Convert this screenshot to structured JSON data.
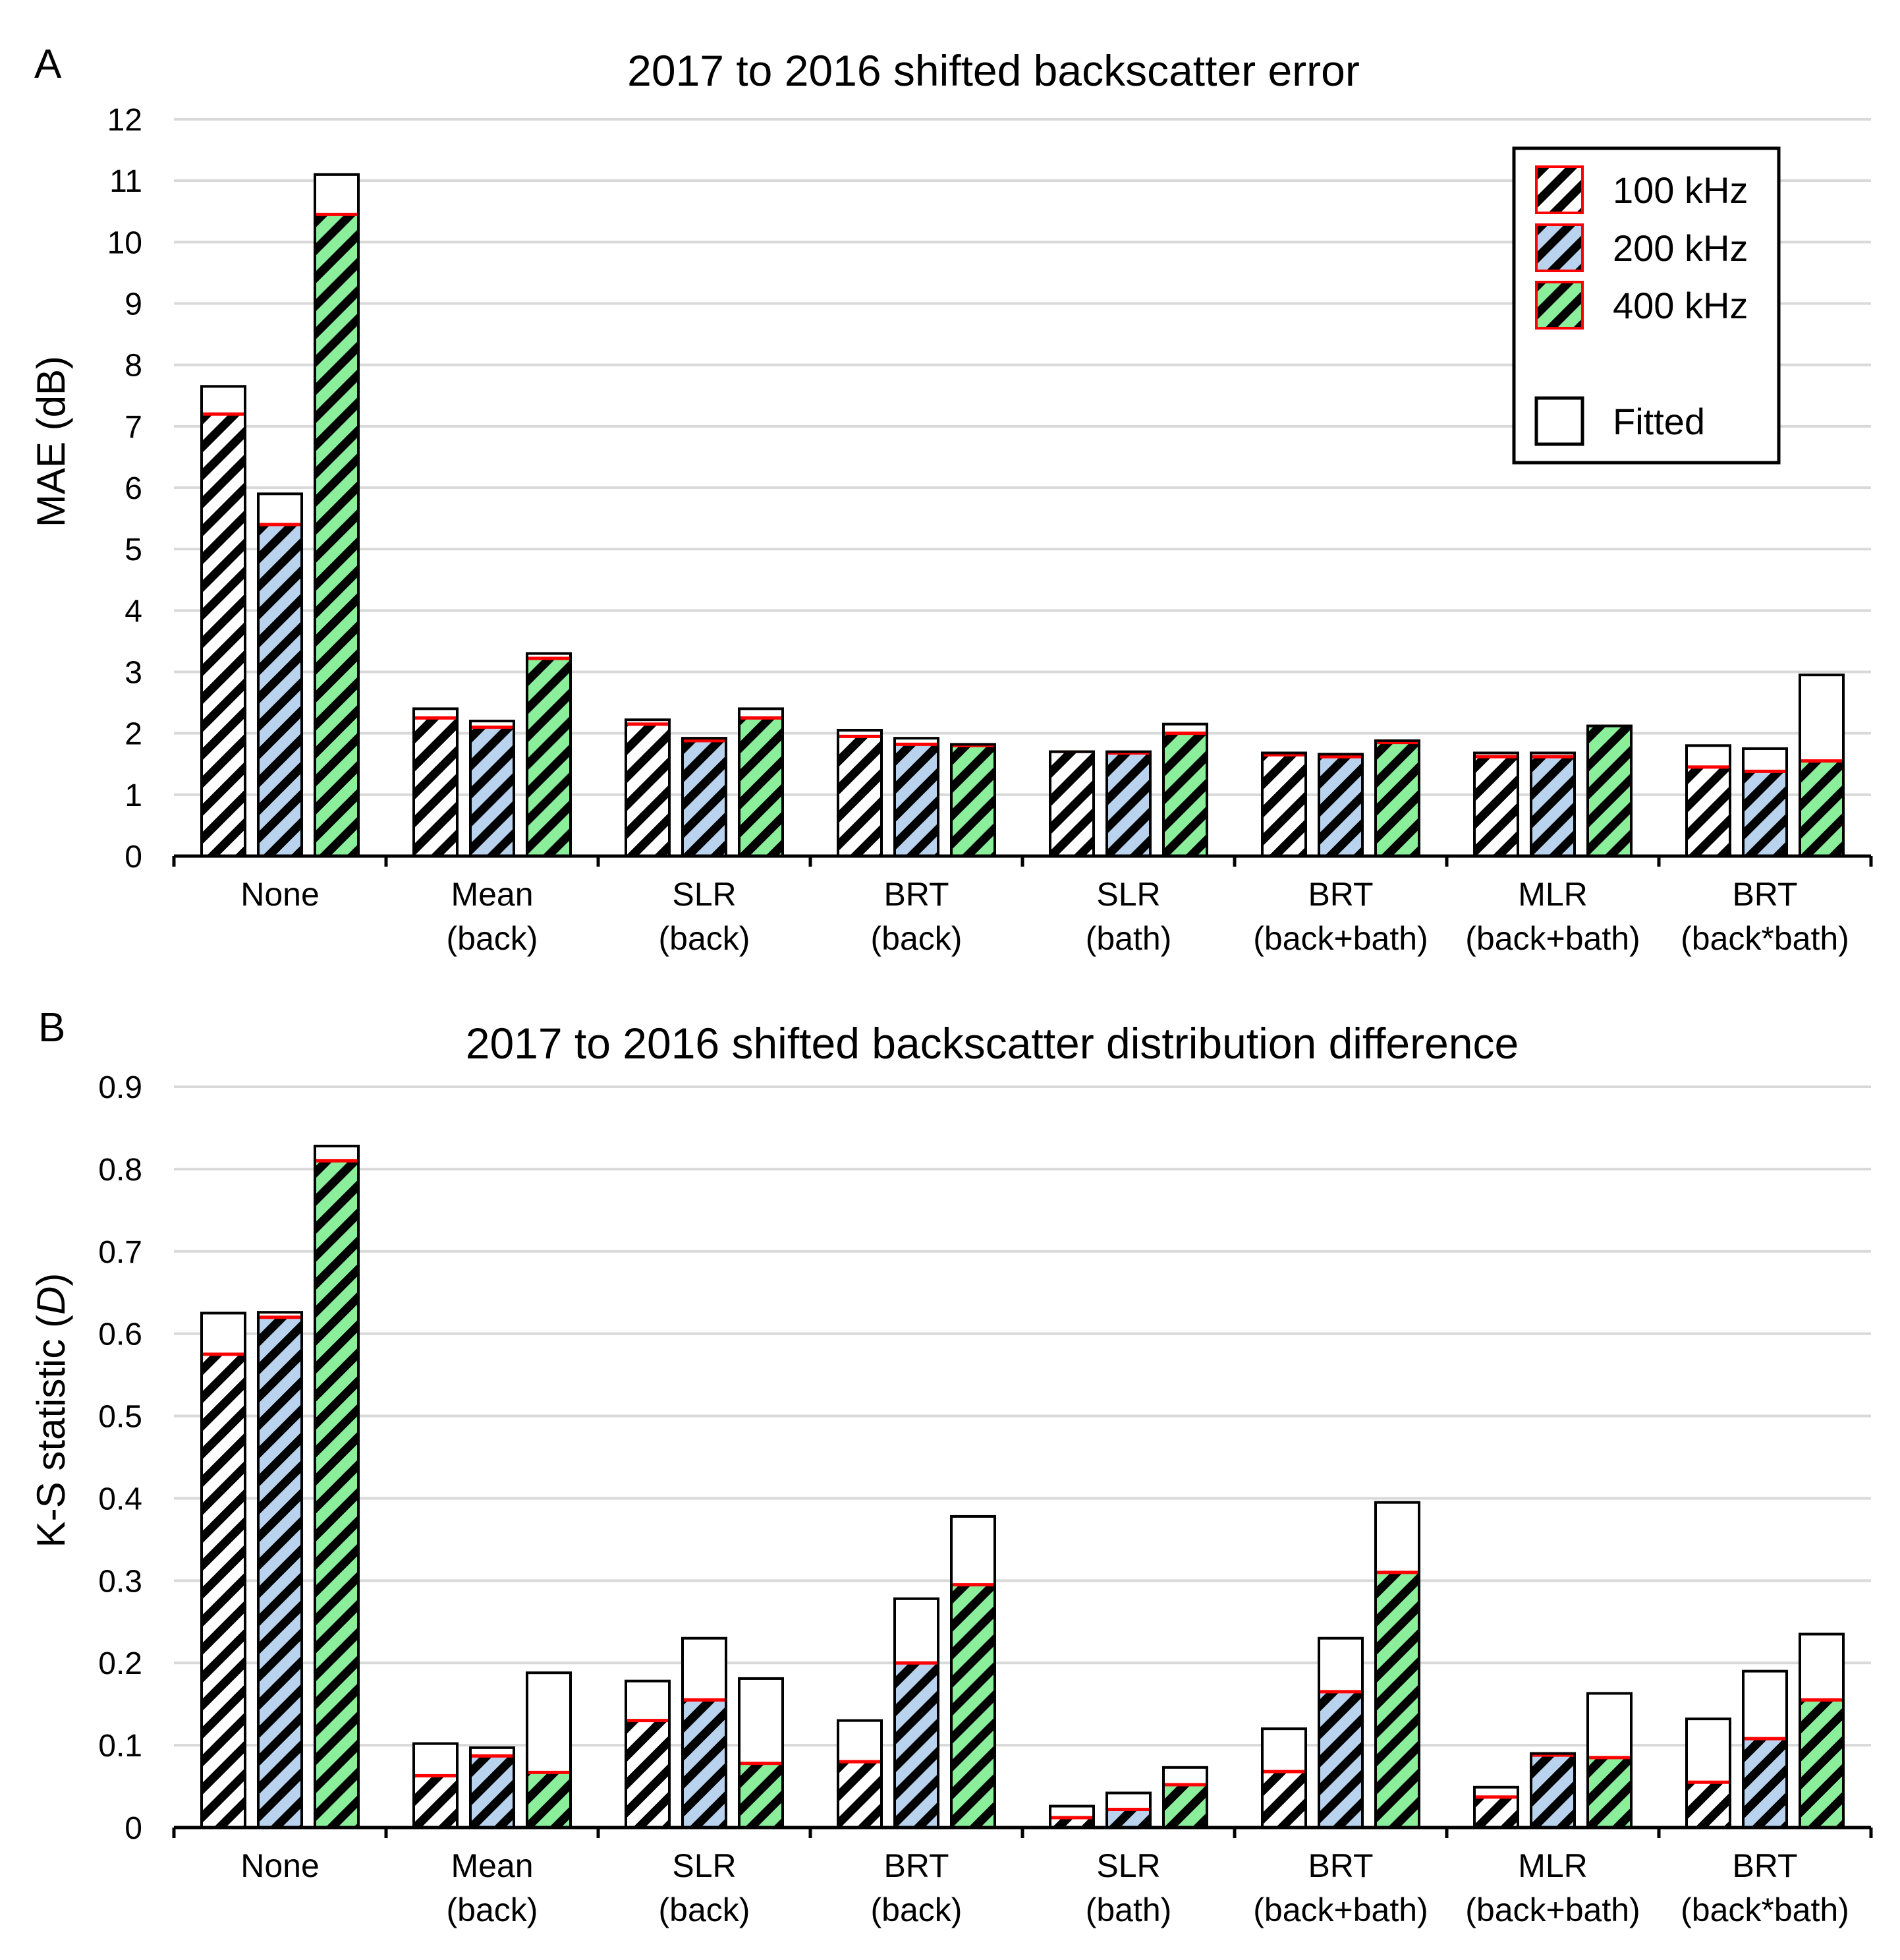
{
  "colors": {
    "100kHz": "#ffffff",
    "200kHz": "#b9d3ee",
    "400kHz": "#8aee9b",
    "fitted": "#ffffff",
    "outline_red": "#ff0000"
  },
  "legend": {
    "items": [
      {
        "label": "100 kHz",
        "key": "100kHz"
      },
      {
        "label": "200 kHz",
        "key": "200kHz"
      },
      {
        "label": "400 kHz",
        "key": "400kHz"
      }
    ],
    "fitted_label": "Fitted"
  },
  "categories": [
    {
      "line1": "None",
      "line2": ""
    },
    {
      "line1": "Mean",
      "line2": "(back)"
    },
    {
      "line1": "SLR",
      "line2": "(back)"
    },
    {
      "line1": "BRT",
      "line2": "(back)"
    },
    {
      "line1": "SLR",
      "line2": "(bath)"
    },
    {
      "line1": "BRT",
      "line2": "(back+bath)"
    },
    {
      "line1": "MLR",
      "line2": "(back+bath)"
    },
    {
      "line1": "BRT",
      "line2": "(back*bath)"
    }
  ],
  "chart_data": [
    {
      "type": "bar",
      "panel_label": "A",
      "title": "2017 to 2016 shifted backscatter error",
      "ylabel": "MAE (dB)",
      "ylim": [
        0,
        12
      ],
      "yticks": [
        "0",
        "1",
        "2",
        "3",
        "4",
        "5",
        "6",
        "7",
        "8",
        "9",
        "10",
        "11",
        "12"
      ],
      "series": [
        {
          "name": "100 kHz",
          "values": [
            7.2,
            2.25,
            2.15,
            1.95,
            1.7,
            1.65,
            1.62,
            1.45
          ],
          "fitted": [
            7.65,
            2.4,
            2.22,
            2.05,
            1.7,
            1.68,
            1.68,
            1.8
          ]
        },
        {
          "name": "200 kHz",
          "values": [
            5.4,
            2.1,
            1.88,
            1.82,
            1.68,
            1.62,
            1.62,
            1.38
          ],
          "fitted": [
            5.9,
            2.2,
            1.92,
            1.92,
            1.7,
            1.66,
            1.68,
            1.75
          ]
        },
        {
          "name": "400 kHz",
          "values": [
            10.45,
            3.22,
            2.25,
            1.8,
            2.0,
            1.85,
            2.12,
            1.55
          ],
          "fitted": [
            11.1,
            3.3,
            2.4,
            1.82,
            2.15,
            1.88,
            2.12,
            2.95
          ]
        }
      ]
    },
    {
      "type": "bar",
      "panel_label": "B",
      "title": "2017 to 2016 shifted backscatter distribution difference",
      "ylabel_main": "K-S statistic (",
      "ylabel_var": "D",
      "ylabel_end": ")",
      "ylim": [
        0,
        0.9
      ],
      "yticks": [
        "0",
        "0.1",
        "0.2",
        "0.3",
        "0.4",
        "0.5",
        "0.6",
        "0.7",
        "0.8",
        "0.9"
      ],
      "series": [
        {
          "name": "100 kHz",
          "values": [
            0.575,
            0.063,
            0.13,
            0.08,
            0.012,
            0.068,
            0.037,
            0.055
          ],
          "fitted": [
            0.625,
            0.102,
            0.178,
            0.13,
            0.026,
            0.12,
            0.049,
            0.132
          ]
        },
        {
          "name": "200 kHz",
          "values": [
            0.62,
            0.087,
            0.155,
            0.2,
            0.022,
            0.165,
            0.088,
            0.108
          ],
          "fitted": [
            0.626,
            0.097,
            0.23,
            0.278,
            0.042,
            0.23,
            0.09,
            0.19
          ]
        },
        {
          "name": "400 kHz",
          "values": [
            0.81,
            0.067,
            0.078,
            0.295,
            0.052,
            0.31,
            0.085,
            0.155
          ],
          "fitted": [
            0.828,
            0.188,
            0.181,
            0.378,
            0.073,
            0.395,
            0.163,
            0.235
          ]
        }
      ]
    }
  ]
}
